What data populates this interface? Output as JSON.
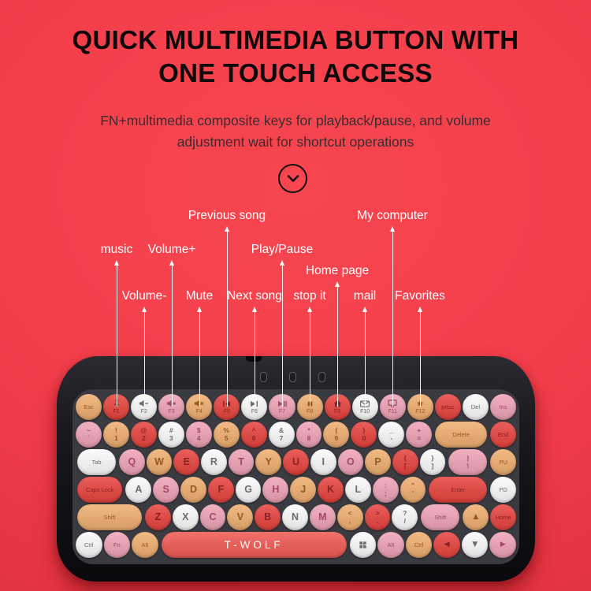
{
  "title": {
    "line1": "QUICK MULTIMEDIA BUTTON WITH",
    "line2": "ONE TOUCH ACCESS"
  },
  "subtitle": {
    "line1": "FN+multimedia composite keys for playback/pause, and volume",
    "line2": "adjustment wait for shortcut operations"
  },
  "colors": {
    "background": "#f33e4a",
    "title_text": "#0e0a0c",
    "subtitle_text": "#3a2d30",
    "callout_text": "#ffffff",
    "key_red": "#e7433e",
    "key_pink": "#efa3b6",
    "key_orange": "#efae70",
    "key_white": "#fbfbfc",
    "spacebar_red": "#ef5a52",
    "keyboard_black": "#141417",
    "key_well_gray": "#3a3a41"
  },
  "callouts": [
    {
      "label": "Previous song",
      "target": "f5",
      "tier": "1"
    },
    {
      "label": "My computer",
      "target": "f11",
      "tier": "1"
    },
    {
      "label": "music",
      "target": "f1",
      "tier": "2"
    },
    {
      "label": "Volume+",
      "target": "f3",
      "tier": "2"
    },
    {
      "label": "Play/Pause",
      "target": "f7",
      "tier": "2"
    },
    {
      "label": "Home page",
      "target": "f9",
      "tier": "25"
    },
    {
      "label": "Volume-",
      "target": "f2",
      "tier": "3"
    },
    {
      "label": "Mute",
      "target": "f4",
      "tier": "3"
    },
    {
      "label": "Next song",
      "target": "f6",
      "tier": "3"
    },
    {
      "label": "stop it",
      "target": "f8",
      "tier": "3"
    },
    {
      "label": "mail",
      "target": "f10",
      "tier": "3"
    },
    {
      "label": "Favorites",
      "target": "f12",
      "tier": "3"
    }
  ],
  "keyboard": {
    "brand": "T-WOLF",
    "rows": [
      [
        {
          "id": "esc",
          "type": "text",
          "label": "Esc",
          "color": "orange"
        },
        {
          "id": "f1",
          "type": "fkey",
          "label": "F1",
          "icon": "music-note",
          "color": "red"
        },
        {
          "id": "f2",
          "type": "fkey",
          "label": "F2",
          "icon": "volume-down",
          "color": "white"
        },
        {
          "id": "f3",
          "type": "fkey",
          "label": "F3",
          "icon": "volume-up",
          "color": "pink"
        },
        {
          "id": "f4",
          "type": "fkey",
          "label": "F4",
          "icon": "mute",
          "color": "orange"
        },
        {
          "id": "f5",
          "type": "fkey",
          "label": "F5",
          "icon": "prev-track",
          "color": "red"
        },
        {
          "id": "f6",
          "type": "fkey",
          "label": "F6",
          "icon": "next-track",
          "color": "white"
        },
        {
          "id": "f7",
          "type": "fkey",
          "label": "F7",
          "icon": "play-pause",
          "color": "pink"
        },
        {
          "id": "f8",
          "type": "fkey",
          "label": "F8",
          "icon": "stop",
          "color": "orange"
        },
        {
          "id": "f9",
          "type": "fkey",
          "label": "F9",
          "icon": "home",
          "color": "red"
        },
        {
          "id": "f10",
          "type": "fkey",
          "label": "F10",
          "icon": "mail",
          "color": "white"
        },
        {
          "id": "f11",
          "type": "fkey",
          "label": "F11",
          "icon": "computer",
          "color": "pink"
        },
        {
          "id": "f12",
          "type": "fkey",
          "label": "F12",
          "icon": "star",
          "color": "orange"
        },
        {
          "id": "prtsc",
          "type": "text",
          "label": "prtsc",
          "color": "red"
        },
        {
          "id": "del",
          "type": "text",
          "label": "Del",
          "color": "white"
        },
        {
          "id": "ins",
          "type": "text",
          "label": "Ins",
          "color": "pink"
        }
      ],
      [
        {
          "id": "backtick",
          "type": "dual",
          "top": "~",
          "bottom": "`",
          "color": "pink"
        },
        {
          "id": "1",
          "type": "dual",
          "top": "!",
          "bottom": "1",
          "color": "orange"
        },
        {
          "id": "2",
          "type": "dual",
          "top": "@",
          "bottom": "2",
          "color": "red"
        },
        {
          "id": "3",
          "type": "dual",
          "top": "#",
          "bottom": "3",
          "color": "white"
        },
        {
          "id": "4",
          "type": "dual",
          "top": "$",
          "bottom": "4",
          "color": "pink"
        },
        {
          "id": "5",
          "type": "dual",
          "top": "%",
          "bottom": "5",
          "color": "orange"
        },
        {
          "id": "6",
          "type": "dual",
          "top": "^",
          "bottom": "6",
          "color": "red"
        },
        {
          "id": "7",
          "type": "dual",
          "top": "&",
          "bottom": "7",
          "color": "white"
        },
        {
          "id": "8",
          "type": "dual",
          "top": "*",
          "bottom": "8",
          "color": "pink"
        },
        {
          "id": "9",
          "type": "dual",
          "top": "(",
          "bottom": "9",
          "color": "orange"
        },
        {
          "id": "0",
          "type": "dual",
          "top": ")",
          "bottom": "0",
          "color": "red"
        },
        {
          "id": "minus",
          "type": "dual",
          "top": "_",
          "bottom": "-",
          "color": "white"
        },
        {
          "id": "equals",
          "type": "dual",
          "top": "+",
          "bottom": "=",
          "color": "pink"
        },
        {
          "id": "delete",
          "type": "text",
          "label": "Delete",
          "color": "orange",
          "u": 2
        },
        {
          "id": "end",
          "type": "text",
          "label": "End",
          "color": "red"
        }
      ],
      [
        {
          "id": "tab",
          "type": "text",
          "label": "Tab",
          "color": "white",
          "u": 1.5
        },
        {
          "id": "q",
          "type": "letter",
          "label": "Q",
          "color": "pink"
        },
        {
          "id": "w",
          "type": "letter",
          "label": "W",
          "color": "orange"
        },
        {
          "id": "e",
          "type": "letter",
          "label": "E",
          "color": "red"
        },
        {
          "id": "r",
          "type": "letter",
          "label": "R",
          "color": "white"
        },
        {
          "id": "t",
          "type": "letter",
          "label": "T",
          "color": "pink"
        },
        {
          "id": "y",
          "type": "letter",
          "label": "Y",
          "color": "orange"
        },
        {
          "id": "u",
          "type": "letter",
          "label": "U",
          "color": "red"
        },
        {
          "id": "i",
          "type": "letter",
          "label": "I",
          "color": "white"
        },
        {
          "id": "o",
          "type": "letter",
          "label": "O",
          "color": "pink"
        },
        {
          "id": "p",
          "type": "letter",
          "label": "P",
          "color": "orange"
        },
        {
          "id": "lbracket",
          "type": "dual",
          "top": "{",
          "bottom": "[",
          "color": "red"
        },
        {
          "id": "rbracket",
          "type": "dual",
          "top": "}",
          "bottom": "]",
          "color": "white"
        },
        {
          "id": "backslash",
          "type": "dual",
          "top": "|",
          "bottom": "\\",
          "color": "pink",
          "u": 1.5
        },
        {
          "id": "pu",
          "type": "text",
          "label": "PU",
          "color": "orange"
        }
      ],
      [
        {
          "id": "caps",
          "type": "text",
          "label": "Caps Lock",
          "color": "red",
          "u": 1.75
        },
        {
          "id": "a",
          "type": "letter",
          "label": "A",
          "color": "white"
        },
        {
          "id": "s",
          "type": "letter",
          "label": "S",
          "color": "pink"
        },
        {
          "id": "d",
          "type": "letter",
          "label": "D",
          "color": "orange"
        },
        {
          "id": "f",
          "type": "letter",
          "label": "F",
          "color": "red"
        },
        {
          "id": "g",
          "type": "letter",
          "label": "G",
          "color": "white"
        },
        {
          "id": "h",
          "type": "letter",
          "label": "H",
          "color": "pink"
        },
        {
          "id": "j",
          "type": "letter",
          "label": "J",
          "color": "orange"
        },
        {
          "id": "k",
          "type": "letter",
          "label": "K",
          "color": "red"
        },
        {
          "id": "l",
          "type": "letter",
          "label": "L",
          "color": "white"
        },
        {
          "id": "semicolon",
          "type": "dual",
          "top": ":",
          "bottom": ";",
          "color": "pink"
        },
        {
          "id": "quote",
          "type": "dual",
          "top": "\"",
          "bottom": "'",
          "color": "orange"
        },
        {
          "id": "enter",
          "type": "text",
          "label": "Enter",
          "color": "red",
          "u": 2.25
        },
        {
          "id": "pd",
          "type": "text",
          "label": "PD",
          "color": "white"
        }
      ],
      [
        {
          "id": "lshift",
          "type": "text",
          "label": "Shift",
          "color": "orange",
          "u": 2.5
        },
        {
          "id": "z",
          "type": "letter",
          "label": "Z",
          "color": "red"
        },
        {
          "id": "x",
          "type": "letter",
          "label": "X",
          "color": "white"
        },
        {
          "id": "c",
          "type": "letter",
          "label": "C",
          "color": "pink"
        },
        {
          "id": "v",
          "type": "letter",
          "label": "V",
          "color": "orange"
        },
        {
          "id": "b",
          "type": "letter",
          "label": "B",
          "color": "red"
        },
        {
          "id": "n",
          "type": "letter",
          "label": "N",
          "color": "white"
        },
        {
          "id": "m",
          "type": "letter",
          "label": "M",
          "color": "pink"
        },
        {
          "id": "comma",
          "type": "dual",
          "top": "<",
          "bottom": ",",
          "color": "orange"
        },
        {
          "id": "period",
          "type": "dual",
          "top": ">",
          "bottom": ".",
          "color": "red"
        },
        {
          "id": "slash",
          "type": "dual",
          "top": "?",
          "bottom": "/",
          "color": "white"
        },
        {
          "id": "rshift",
          "type": "text",
          "label": "Shift",
          "color": "pink",
          "u": 1.5
        },
        {
          "id": "up",
          "type": "arrow",
          "label": "▲",
          "color": "orange"
        },
        {
          "id": "home",
          "type": "text",
          "label": "Home",
          "color": "red"
        }
      ],
      [
        {
          "id": "lctrl",
          "type": "text",
          "label": "Ctrl",
          "color": "white"
        },
        {
          "id": "fn",
          "type": "text",
          "label": "Fn",
          "color": "pink"
        },
        {
          "id": "lalt",
          "type": "text",
          "label": "Alt",
          "color": "orange"
        },
        {
          "id": "space",
          "type": "space",
          "label": "T-WOLF",
          "color": "space",
          "u": 7
        },
        {
          "id": "win",
          "type": "fkeyicon",
          "icon": "windows",
          "color": "white"
        },
        {
          "id": "ralt",
          "type": "text",
          "label": "Alt",
          "color": "pink"
        },
        {
          "id": "rctrl",
          "type": "text",
          "label": "Ctrl",
          "color": "orange"
        },
        {
          "id": "left",
          "type": "arrow",
          "label": "◀",
          "color": "red"
        },
        {
          "id": "down",
          "type": "arrow",
          "label": "▼",
          "color": "white"
        },
        {
          "id": "right",
          "type": "arrow",
          "label": "▶",
          "color": "pink"
        }
      ]
    ]
  }
}
